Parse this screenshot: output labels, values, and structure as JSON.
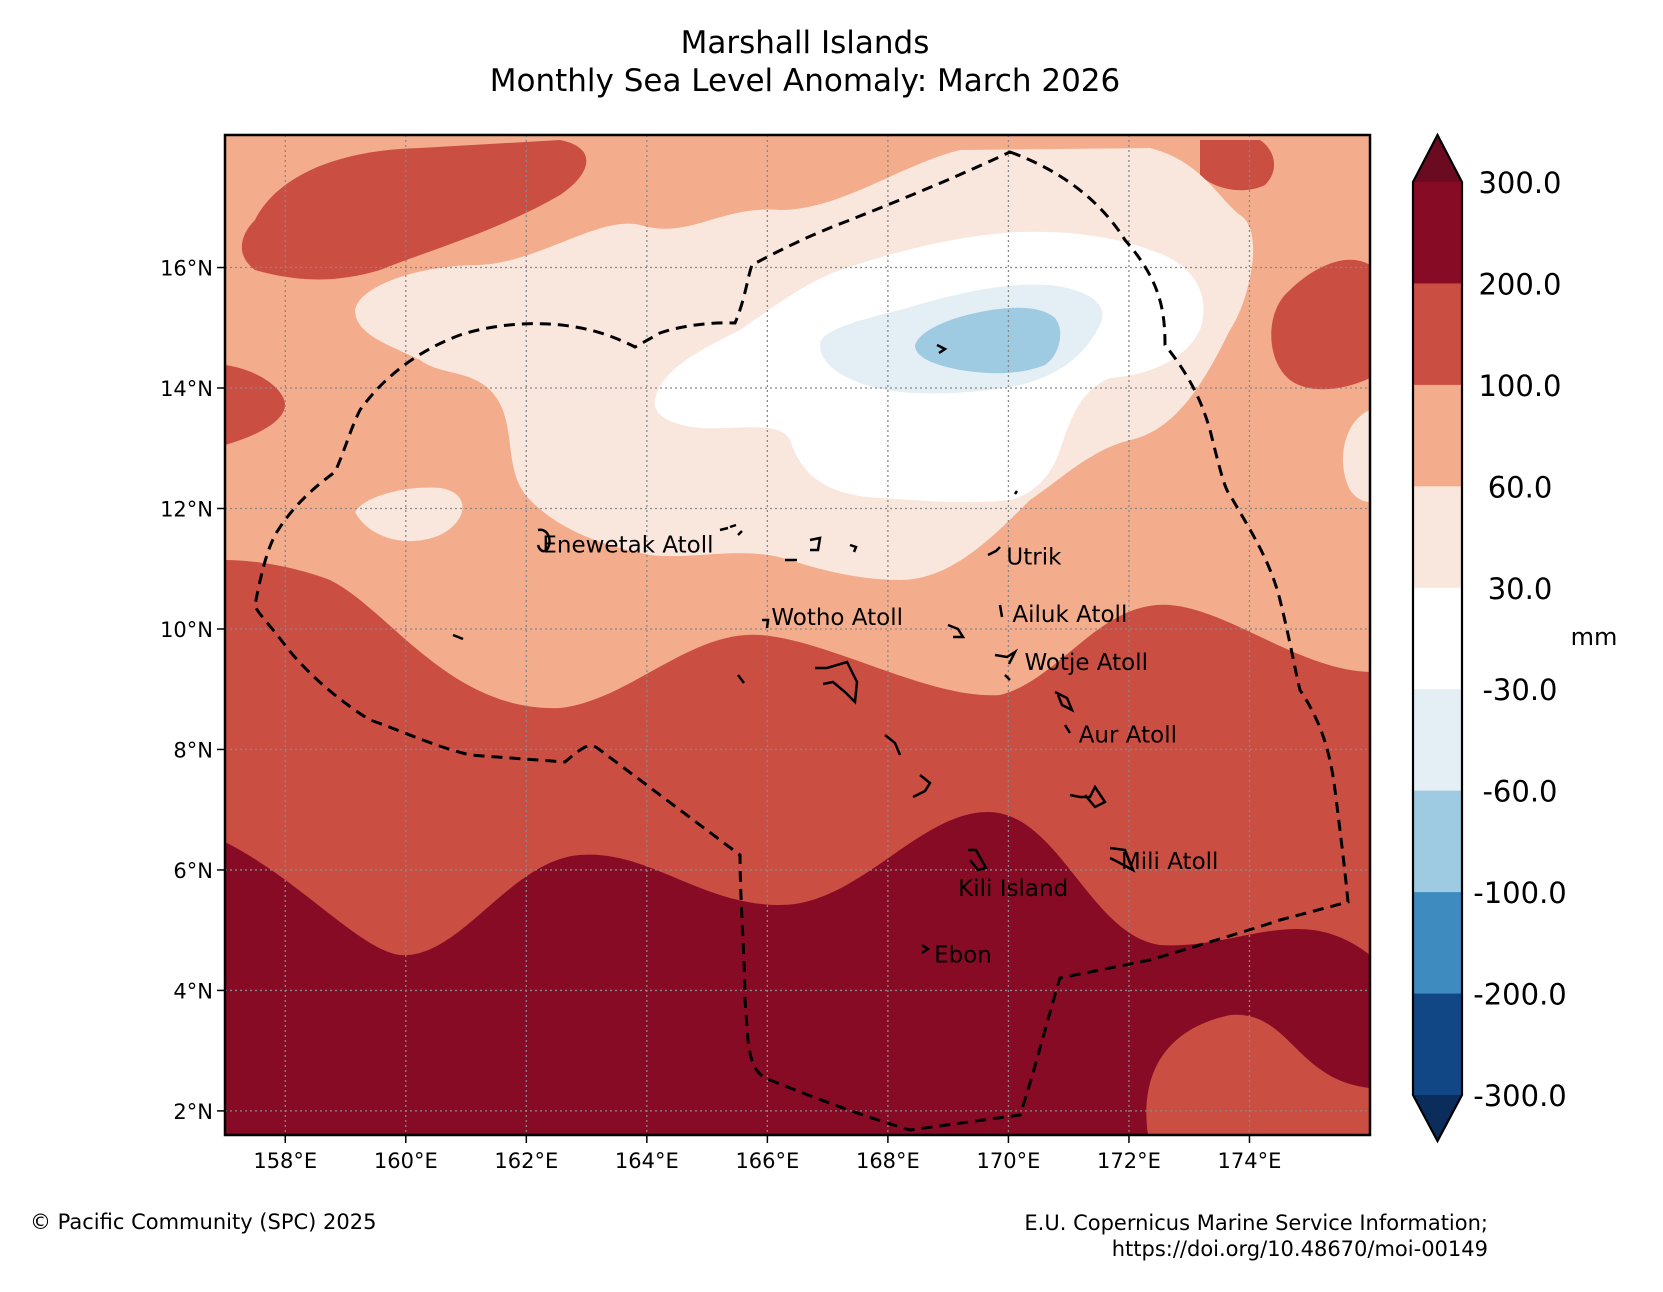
{
  "title": {
    "line1": "Marshall Islands",
    "line2": "Monthly Sea Level Anomaly: March 2026"
  },
  "map": {
    "lon_range": [
      157.0,
      176.0
    ],
    "lat_range": [
      1.6,
      18.2
    ],
    "lon_ticks": [
      {
        "value": 158,
        "label": "158°E"
      },
      {
        "value": 160,
        "label": "160°E"
      },
      {
        "value": 162,
        "label": "162°E"
      },
      {
        "value": 164,
        "label": "164°E"
      },
      {
        "value": 166,
        "label": "166°E"
      },
      {
        "value": 168,
        "label": "168°E"
      },
      {
        "value": 170,
        "label": "170°E"
      },
      {
        "value": 172,
        "label": "172°E"
      },
      {
        "value": 174,
        "label": "174°E"
      }
    ],
    "lat_ticks": [
      {
        "value": 2,
        "label": "2°N"
      },
      {
        "value": 4,
        "label": "4°N"
      },
      {
        "value": 6,
        "label": "6°N"
      },
      {
        "value": 8,
        "label": "8°N"
      },
      {
        "value": 10,
        "label": "10°N"
      },
      {
        "value": 12,
        "label": "12°N"
      },
      {
        "value": 14,
        "label": "14°N"
      },
      {
        "value": 16,
        "label": "16°N"
      }
    ],
    "places": [
      {
        "name": "Enewetak Atoll",
        "lon": 162.2,
        "lat": 11.4
      },
      {
        "name": "Utrik",
        "lon": 169.9,
        "lat": 11.2
      },
      {
        "name": "Wotho Atoll",
        "lon": 166.0,
        "lat": 10.2
      },
      {
        "name": "Ailuk Atoll",
        "lon": 170.0,
        "lat": 10.25
      },
      {
        "name": "Wotje Atoll",
        "lon": 170.2,
        "lat": 9.45
      },
      {
        "name": "Aur Atoll",
        "lon": 171.1,
        "lat": 8.25
      },
      {
        "name": "Mili Atoll",
        "lon": 171.8,
        "lat": 6.15
      },
      {
        "name": "Kili Island",
        "lon": 169.1,
        "lat": 5.7
      },
      {
        "name": "Ebon",
        "lon": 168.7,
        "lat": 4.6
      }
    ]
  },
  "colorbar": {
    "levels": [
      "300.0",
      "200.0",
      "100.0",
      "60.0",
      "30.0",
      "-30.0",
      "-60.0",
      "-100.0",
      "-200.0",
      "-300.0"
    ],
    "colors": [
      "#6a0b22",
      "#870b25",
      "#cb4e43",
      "#f3ad8d",
      "#f9e6dd",
      "#ffffff",
      "#e4eef5",
      "#9fcbe2",
      "#3e8bc0",
      "#124785",
      "#0b2d5c"
    ],
    "unit": "mm"
  },
  "credits": {
    "left": "© Pacific Community (SPC) 2025",
    "right_line1": "E.U. Copernicus Marine Service Information;",
    "right_line2": "https://doi.org/10.48670/moi-00149"
  }
}
